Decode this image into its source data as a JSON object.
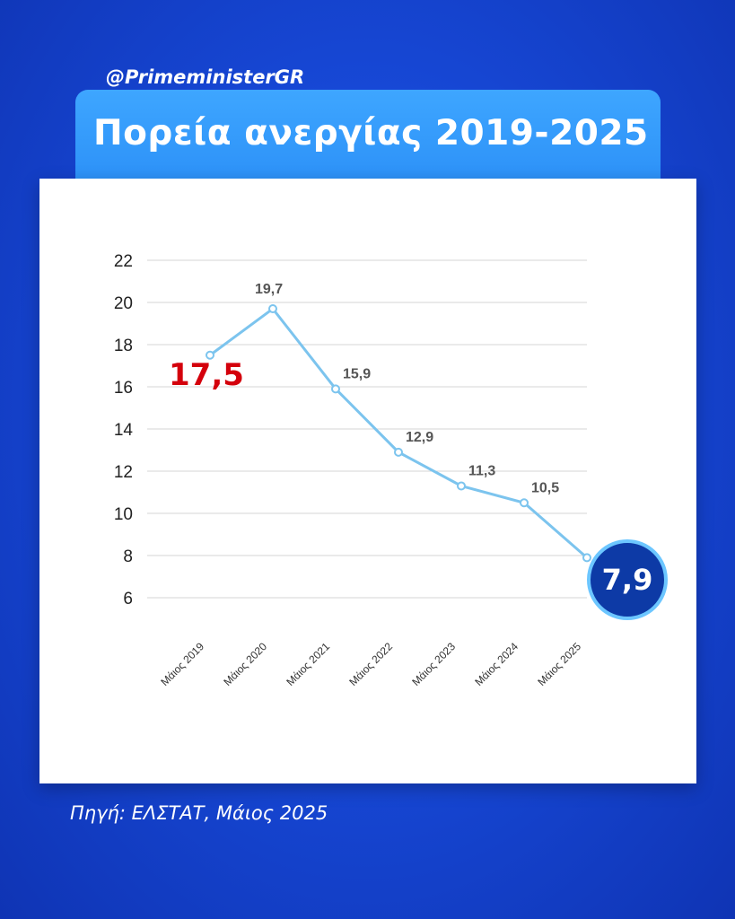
{
  "header": {
    "handle": "@PrimeministerGR",
    "title": "Πορεία ανεργίας 2019-2025"
  },
  "footer": {
    "source": "Πηγή: ΕΛΣΤΑΤ, Μάιος 2025"
  },
  "highlights": {
    "first_value_label": "17,5",
    "final_value_label": "7,9"
  },
  "colors": {
    "line": "#7cc4ee",
    "first_highlight": "#d4000c",
    "final_badge_fill": "#0d3aa6",
    "final_badge_ring": "#6cc6ff"
  },
  "chart_data": {
    "type": "line",
    "title": "Πορεία ανεργίας 2019-2025",
    "xlabel": "",
    "ylabel": "",
    "categories": [
      "Μάιος 2019",
      "Μάιος 2020",
      "Μάιος 2021",
      "Μάιος 2022",
      "Μάιος 2023",
      "Μάιος 2024",
      "Μάιος 2025"
    ],
    "series": [
      {
        "values": [
          17.5,
          19.7,
          15.9,
          12.9,
          11.3,
          10.5,
          7.9
        ]
      }
    ],
    "data_labels": [
      "17,5",
      "19,7",
      "15,9",
      "12,9",
      "11,3",
      "10,5",
      "7,9"
    ],
    "y_ticks": [
      6,
      8,
      10,
      12,
      14,
      16,
      18,
      20,
      22
    ],
    "ylim": [
      6,
      22
    ],
    "grid": true,
    "legend": "none"
  }
}
